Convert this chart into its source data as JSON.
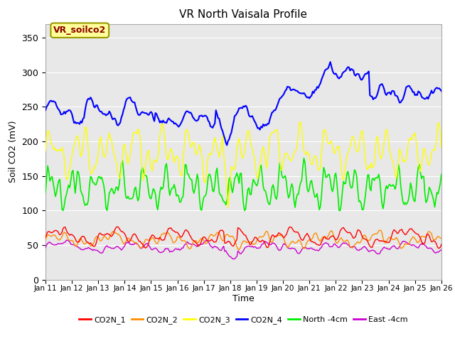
{
  "title": "VR North Vaisala Profile",
  "xlabel": "Time",
  "ylabel": "Soil CO2 (mV)",
  "ylim": [
    0,
    370
  ],
  "xlim": [
    0,
    360
  ],
  "yticks": [
    0,
    50,
    100,
    150,
    200,
    250,
    300,
    350
  ],
  "xtick_labels": [
    "Jan 11",
    "Jan 12",
    "Jan 13",
    "Jan 14",
    "Jan 15",
    "Jan 16",
    "Jan 17",
    "Jan 18",
    "Jan 19",
    "Jan 20",
    "Jan 21",
    "Jan 22",
    "Jan 23",
    "Jan 24",
    "Jan 25",
    "Jan 26"
  ],
  "xtick_positions": [
    0,
    24,
    48,
    72,
    96,
    120,
    144,
    168,
    192,
    216,
    240,
    264,
    288,
    312,
    336,
    360
  ],
  "legend_label": "VR_soilco2",
  "legend_text_color": "#8B0000",
  "legend_bg": "#FFFF99",
  "legend_border": "#999900",
  "series": {
    "CO2N_1": {
      "color": "#FF0000",
      "linewidth": 1.0
    },
    "CO2N_2": {
      "color": "#FF8C00",
      "linewidth": 1.0
    },
    "CO2N_3": {
      "color": "#FFFF00",
      "linewidth": 1.0
    },
    "CO2N_4": {
      "color": "#0000FF",
      "linewidth": 1.5
    },
    "North_4cm": {
      "color": "#00EE00",
      "linewidth": 1.2
    },
    "East_4cm": {
      "color": "#CC00CC",
      "linewidth": 1.0
    }
  },
  "bg_color": "#e8e8e8",
  "grid_color": "#ffffff"
}
